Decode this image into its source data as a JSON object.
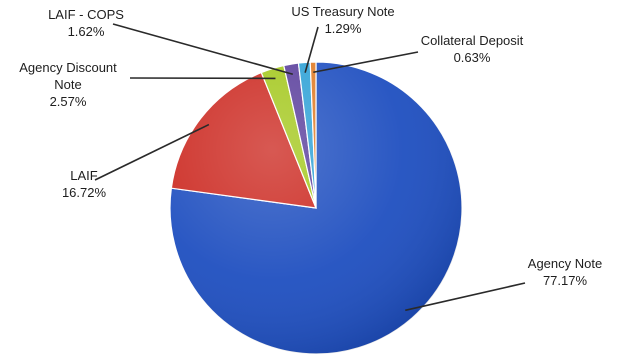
{
  "chart_data": {
    "type": "pie",
    "title": "",
    "legend": "none",
    "slices": [
      {
        "label": "Agency Note",
        "value": 77.17,
        "value_label": "77.17%",
        "color": "#1f4fc0"
      },
      {
        "label": "LAIF",
        "value": 16.72,
        "value_label": "16.72%",
        "color": "#cc2a22"
      },
      {
        "label": "Agency Discount Note",
        "label_lines": [
          "Agency Discount",
          "Note"
        ],
        "value": 2.57,
        "value_label": "2.57%",
        "color": "#a4c81e"
      },
      {
        "label": "LAIF - COPS",
        "value": 1.62,
        "value_label": "1.62%",
        "color": "#5a3f9c"
      },
      {
        "label": "US Treasury Note",
        "value": 1.29,
        "value_label": "1.29%",
        "color": "#2ea1d6"
      },
      {
        "label": "Collateral Deposit",
        "value": 0.63,
        "value_label": "0.63%",
        "color": "#e07b25"
      }
    ]
  }
}
